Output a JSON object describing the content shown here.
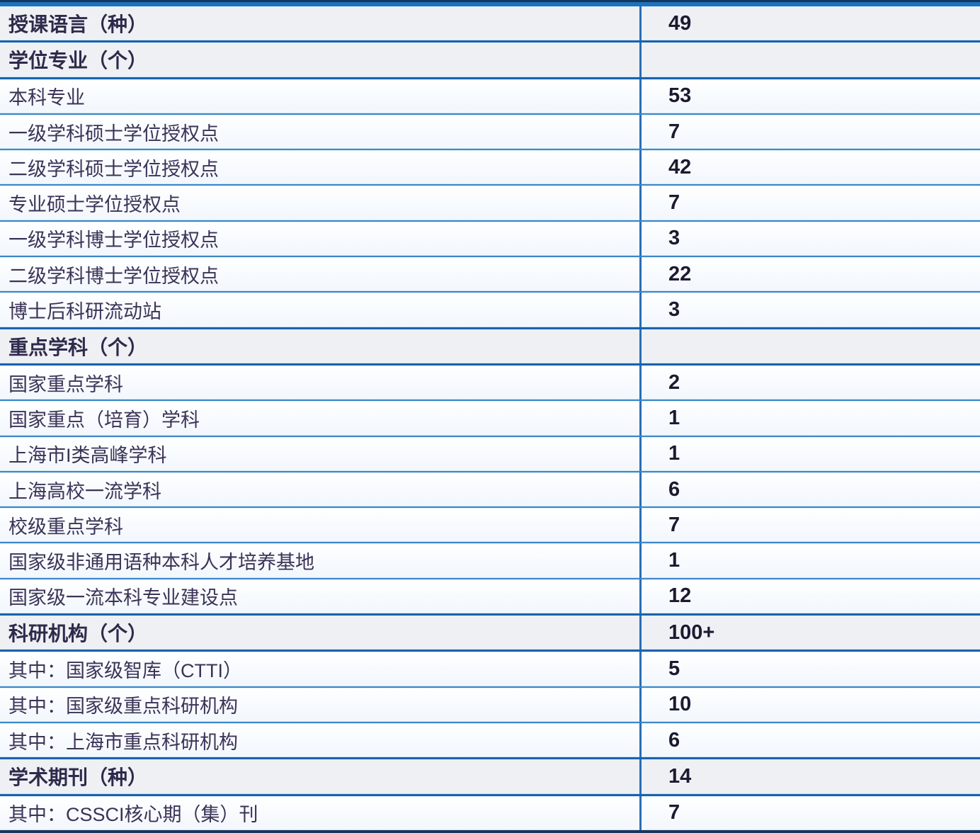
{
  "chart_data": {
    "type": "table",
    "legend_position": "none",
    "grid": "blue-ruled rows with darker separators around section header rows",
    "rows": [
      {
        "label": "授课语言（种）",
        "value": "49",
        "section": true
      },
      {
        "label": "学位专业（个）",
        "value": "",
        "section": true
      },
      {
        "label": "本科专业",
        "value": "53",
        "section": false
      },
      {
        "label": "一级学科硕士学位授权点",
        "value": "7",
        "section": false
      },
      {
        "label": "二级学科硕士学位授权点",
        "value": "42",
        "section": false
      },
      {
        "label": "专业硕士学位授权点",
        "value": "7",
        "section": false
      },
      {
        "label": "一级学科博士学位授权点",
        "value": "3",
        "section": false
      },
      {
        "label": "二级学科博士学位授权点",
        "value": "22",
        "section": false
      },
      {
        "label": "博士后科研流动站",
        "value": "3",
        "section": false
      },
      {
        "label": "重点学科（个）",
        "value": "",
        "section": true
      },
      {
        "label": "国家重点学科",
        "value": "2",
        "section": false
      },
      {
        "label": "国家重点（培育）学科",
        "value": "1",
        "section": false
      },
      {
        "label": "上海市I类高峰学科",
        "value": "1",
        "section": false
      },
      {
        "label": "上海高校一流学科",
        "value": "6",
        "section": false
      },
      {
        "label": "校级重点学科",
        "value": "7",
        "section": false
      },
      {
        "label": "国家级非通用语种本科人才培养基地",
        "value": "1",
        "section": false
      },
      {
        "label": "国家级一流本科专业建设点",
        "value": "12",
        "section": false
      },
      {
        "label": "科研机构（个）",
        "value": "100+",
        "section": true
      },
      {
        "label": "其中：国家级智库（CTTI）",
        "value": "5",
        "section": false
      },
      {
        "label": "其中：国家级重点科研机构",
        "value": "10",
        "section": false
      },
      {
        "label": "其中：上海市重点科研机构",
        "value": "6",
        "section": false
      },
      {
        "label": "学术期刊（种）",
        "value": "14",
        "section": true
      },
      {
        "label": "其中：CSSCI核心期（集）刊",
        "value": "7",
        "section": false
      }
    ]
  },
  "colors": {
    "top_bar_dark": "#16365c",
    "top_bar_blue": "#1b72c0",
    "row_border_regular": "#3d87c8",
    "row_border_strong": "#1a62ae",
    "column_divider": "#2b6db4",
    "section_row_background": "#eef0f4",
    "regular_row_background": "#f7fbfe",
    "label_text": "#3b3357",
    "value_text": "#1c1a30"
  }
}
